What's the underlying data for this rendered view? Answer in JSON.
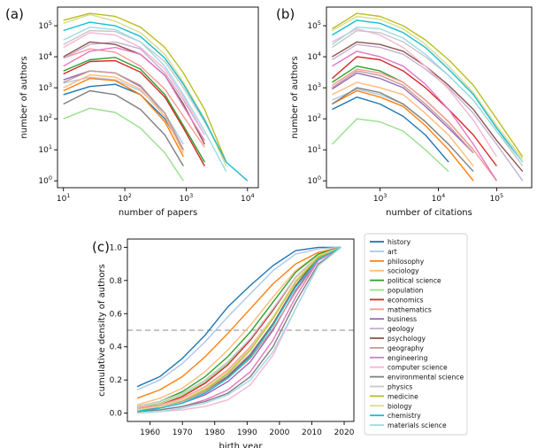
{
  "panel_labels": [
    "(a)",
    "(b)",
    "(c)"
  ],
  "legend": {
    "entries": [
      "history",
      "art",
      "philosophy",
      "sociology",
      "political science",
      "population",
      "economics",
      "mathematics",
      "business",
      "geology",
      "psychology",
      "geography",
      "engineering",
      "computer science",
      "environmental science",
      "physics",
      "medicine",
      "biology",
      "chemistry",
      "materials science"
    ],
    "colors": [
      "#1f77b4",
      "#aec7e8",
      "#ff7f0e",
      "#ffbb78",
      "#2ca02c",
      "#98df8a",
      "#d62728",
      "#ff9896",
      "#9467bd",
      "#c5b0d5",
      "#8c564b",
      "#c49c94",
      "#e377c2",
      "#f7b6d2",
      "#7f7f7f",
      "#c7c7c7",
      "#bcbd22",
      "#dbdb8d",
      "#17becf",
      "#9edae5"
    ]
  },
  "chart_data": [
    {
      "type": "line",
      "panel": "(a)",
      "xlabel": "number of papers",
      "ylabel": "number of authors",
      "xscale": "log",
      "yscale": "log",
      "xlim": [
        8,
        15000
      ],
      "ylim": [
        0.6,
        400000
      ],
      "xticks": [
        10,
        100,
        1000,
        10000
      ],
      "yticks": [
        1,
        10,
        100,
        1000,
        10000,
        100000
      ],
      "x": [
        10,
        27,
        70,
        180,
        450,
        900,
        2000,
        4500,
        10000
      ],
      "series": [
        {
          "name": "history",
          "values": [
            600,
            1100,
            1300,
            600,
            100,
            10,
            null,
            null,
            null
          ]
        },
        {
          "name": "art",
          "values": [
            1400,
            2200,
            1800,
            800,
            150,
            15,
            null,
            null,
            null
          ]
        },
        {
          "name": "philosophy",
          "values": [
            800,
            2000,
            1700,
            600,
            80,
            6,
            null,
            null,
            null
          ]
        },
        {
          "name": "sociology",
          "values": [
            1000,
            2600,
            2200,
            900,
            120,
            8,
            null,
            null,
            null
          ]
        },
        {
          "name": "political science",
          "values": [
            3500,
            8000,
            9500,
            4000,
            600,
            60,
            4,
            null,
            null
          ]
        },
        {
          "name": "population",
          "values": [
            100,
            220,
            160,
            50,
            8,
            1,
            null,
            null,
            null
          ]
        },
        {
          "name": "economics",
          "values": [
            2800,
            7000,
            7500,
            3200,
            500,
            50,
            3,
            null,
            null
          ]
        },
        {
          "name": "mathematics",
          "values": [
            9000,
            18000,
            14000,
            5000,
            900,
            120,
            12,
            null,
            null
          ]
        },
        {
          "name": "business",
          "values": [
            1800,
            3500,
            3000,
            1100,
            150,
            10,
            null,
            null,
            null
          ]
        },
        {
          "name": "geology",
          "values": [
            9000,
            25000,
            30000,
            18000,
            3000,
            400,
            30,
            null,
            null
          ]
        },
        {
          "name": "psychology",
          "values": [
            10000,
            30000,
            25000,
            12000,
            2500,
            300,
            15,
            null,
            null
          ]
        },
        {
          "name": "geography",
          "values": [
            1500,
            3500,
            3000,
            1200,
            150,
            10,
            null,
            null,
            null
          ]
        },
        {
          "name": "engineering",
          "values": [
            5000,
            15000,
            20000,
            12000,
            2500,
            250,
            20,
            null,
            null
          ]
        },
        {
          "name": "computer science",
          "values": [
            20000,
            60000,
            50000,
            20000,
            4000,
            500,
            30,
            null,
            null
          ]
        },
        {
          "name": "environmental science",
          "values": [
            300,
            800,
            600,
            200,
            30,
            3,
            null,
            null,
            null
          ]
        },
        {
          "name": "physics",
          "values": [
            25000,
            70000,
            65000,
            30000,
            7000,
            1000,
            80,
            4,
            null
          ]
        },
        {
          "name": "medicine",
          "values": [
            150000,
            250000,
            200000,
            90000,
            20000,
            3000,
            200,
            4,
            null
          ]
        },
        {
          "name": "biology",
          "values": [
            120000,
            230000,
            140000,
            60000,
            12000,
            1500,
            100,
            3,
            null
          ]
        },
        {
          "name": "chemistry",
          "values": [
            70000,
            130000,
            100000,
            45000,
            9000,
            1300,
            90,
            4,
            1
          ]
        },
        {
          "name": "materials science",
          "values": [
            35000,
            90000,
            75000,
            30000,
            5000,
            600,
            40,
            2,
            null
          ]
        }
      ]
    },
    {
      "type": "line",
      "panel": "(b)",
      "xlabel": "number of citations",
      "ylabel": "number of authors",
      "xscale": "log",
      "yscale": "log",
      "xlim": [
        120,
        400000
      ],
      "ylim": [
        0.6,
        400000
      ],
      "xticks": [
        1000,
        10000,
        100000
      ],
      "yticks": [
        1,
        10,
        100,
        1000,
        10000,
        100000
      ],
      "x": [
        150,
        400,
        1000,
        2500,
        6000,
        15000,
        40000,
        100000,
        280000
      ],
      "series": [
        {
          "name": "history",
          "values": [
            200,
            500,
            300,
            120,
            30,
            4,
            null,
            null,
            null
          ]
        },
        {
          "name": "art",
          "values": [
            400,
            900,
            600,
            300,
            80,
            15,
            null,
            null,
            null
          ]
        },
        {
          "name": "philosophy",
          "values": [
            300,
            800,
            500,
            250,
            60,
            10,
            1,
            null,
            null
          ]
        },
        {
          "name": "sociology",
          "values": [
            600,
            1500,
            1000,
            600,
            150,
            30,
            3,
            null,
            null
          ]
        },
        {
          "name": "political science",
          "values": [
            1500,
            5000,
            3500,
            1500,
            400,
            80,
            10,
            null,
            null
          ]
        },
        {
          "name": "population",
          "values": [
            15,
            100,
            80,
            40,
            10,
            2,
            null,
            null,
            null
          ]
        },
        {
          "name": "economics",
          "values": [
            2000,
            10000,
            8000,
            3500,
            1000,
            200,
            30,
            3,
            null
          ]
        },
        {
          "name": "mathematics",
          "values": [
            1200,
            4000,
            3000,
            1500,
            400,
            80,
            10,
            1,
            null
          ]
        },
        {
          "name": "business",
          "values": [
            900,
            3000,
            2000,
            1000,
            250,
            50,
            8,
            null,
            null
          ]
        },
        {
          "name": "geology",
          "values": [
            8000,
            25000,
            20000,
            12000,
            4000,
            1000,
            150,
            15,
            1
          ]
        },
        {
          "name": "psychology",
          "values": [
            10000,
            30000,
            25000,
            15000,
            5000,
            1200,
            200,
            20,
            2
          ]
        },
        {
          "name": "geography",
          "values": [
            1000,
            3500,
            2500,
            1200,
            300,
            60,
            8,
            null,
            null
          ]
        },
        {
          "name": "engineering",
          "values": [
            5000,
            15000,
            10000,
            5000,
            1300,
            200,
            15,
            1,
            null
          ]
        },
        {
          "name": "computer science",
          "values": [
            30000,
            80000,
            50000,
            20000,
            5000,
            900,
            90,
            6,
            null
          ]
        },
        {
          "name": "environmental science",
          "values": [
            300,
            1000,
            700,
            300,
            80,
            15,
            2,
            null,
            null
          ]
        },
        {
          "name": "physics",
          "values": [
            20000,
            70000,
            60000,
            30000,
            10000,
            2500,
            400,
            40,
            3
          ]
        },
        {
          "name": "medicine",
          "values": [
            80000,
            250000,
            200000,
            100000,
            35000,
            8000,
            1200,
            100,
            6
          ]
        },
        {
          "name": "biology",
          "values": [
            70000,
            200000,
            160000,
            80000,
            25000,
            5000,
            700,
            60,
            5
          ]
        },
        {
          "name": "chemistry",
          "values": [
            50000,
            150000,
            120000,
            60000,
            20000,
            4000,
            600,
            50,
            4
          ]
        },
        {
          "name": "materials science",
          "values": [
            25000,
            90000,
            80000,
            40000,
            12000,
            2500,
            400,
            40,
            4
          ]
        }
      ]
    },
    {
      "type": "line",
      "panel": "(c)",
      "xlabel": "birth year",
      "ylabel": "cumulative density of authors",
      "xlim": [
        1953,
        2023
      ],
      "ylim": [
        -0.05,
        1.05
      ],
      "xticks": [
        1960,
        1970,
        1980,
        1990,
        2000,
        2010,
        2020
      ],
      "yticks": [
        0.0,
        0.2,
        0.4,
        0.6,
        0.8,
        1.0
      ],
      "hline": 0.5,
      "x": [
        1956,
        1963,
        1970,
        1977,
        1984,
        1991,
        1998,
        2005,
        2012,
        2019
      ],
      "series": [
        {
          "name": "history",
          "values": [
            0.16,
            0.22,
            0.33,
            0.47,
            0.64,
            0.77,
            0.89,
            0.98,
            1.0,
            1.0
          ]
        },
        {
          "name": "art",
          "values": [
            0.14,
            0.2,
            0.3,
            0.43,
            0.58,
            0.72,
            0.86,
            0.96,
            0.99,
            1.0
          ]
        },
        {
          "name": "philosophy",
          "values": [
            0.09,
            0.14,
            0.22,
            0.34,
            0.48,
            0.63,
            0.78,
            0.9,
            0.97,
            1.0
          ]
        },
        {
          "name": "sociology",
          "values": [
            0.05,
            0.09,
            0.15,
            0.25,
            0.38,
            0.53,
            0.7,
            0.86,
            0.96,
            1.0
          ]
        },
        {
          "name": "political science",
          "values": [
            0.04,
            0.07,
            0.13,
            0.22,
            0.34,
            0.49,
            0.67,
            0.85,
            0.96,
            1.0
          ]
        },
        {
          "name": "population",
          "values": [
            0.03,
            0.06,
            0.11,
            0.19,
            0.3,
            0.45,
            0.63,
            0.82,
            0.95,
            1.0
          ]
        },
        {
          "name": "economics",
          "values": [
            0.03,
            0.05,
            0.1,
            0.18,
            0.29,
            0.44,
            0.62,
            0.82,
            0.95,
            1.0
          ]
        },
        {
          "name": "mathematics",
          "values": [
            0.03,
            0.05,
            0.09,
            0.16,
            0.26,
            0.4,
            0.58,
            0.79,
            0.94,
            1.0
          ]
        },
        {
          "name": "business",
          "values": [
            0.02,
            0.03,
            0.06,
            0.11,
            0.19,
            0.31,
            0.5,
            0.74,
            0.93,
            1.0
          ]
        },
        {
          "name": "geology",
          "values": [
            0.02,
            0.04,
            0.08,
            0.14,
            0.23,
            0.36,
            0.54,
            0.76,
            0.93,
            1.0
          ]
        },
        {
          "name": "psychology",
          "values": [
            0.02,
            0.04,
            0.07,
            0.13,
            0.22,
            0.35,
            0.54,
            0.77,
            0.94,
            1.0
          ]
        },
        {
          "name": "geography",
          "values": [
            0.02,
            0.04,
            0.07,
            0.13,
            0.21,
            0.33,
            0.51,
            0.73,
            0.92,
            1.0
          ]
        },
        {
          "name": "engineering",
          "values": [
            0.01,
            0.02,
            0.04,
            0.08,
            0.14,
            0.25,
            0.44,
            0.7,
            0.92,
            1.0
          ]
        },
        {
          "name": "computer science",
          "values": [
            0.0,
            0.01,
            0.02,
            0.04,
            0.08,
            0.17,
            0.35,
            0.63,
            0.89,
            1.0
          ]
        },
        {
          "name": "environmental science",
          "values": [
            0.01,
            0.02,
            0.04,
            0.07,
            0.12,
            0.22,
            0.4,
            0.67,
            0.9,
            1.0
          ]
        },
        {
          "name": "physics",
          "values": [
            0.04,
            0.07,
            0.12,
            0.2,
            0.31,
            0.45,
            0.63,
            0.82,
            0.95,
            1.0
          ]
        },
        {
          "name": "medicine",
          "values": [
            0.02,
            0.04,
            0.08,
            0.14,
            0.24,
            0.38,
            0.57,
            0.79,
            0.94,
            1.0
          ]
        },
        {
          "name": "biology",
          "values": [
            0.02,
            0.04,
            0.08,
            0.15,
            0.25,
            0.39,
            0.58,
            0.8,
            0.95,
            1.0
          ]
        },
        {
          "name": "chemistry",
          "values": [
            0.01,
            0.03,
            0.06,
            0.12,
            0.21,
            0.34,
            0.53,
            0.76,
            0.93,
            1.0
          ]
        },
        {
          "name": "materials science",
          "values": [
            0.0,
            0.01,
            0.03,
            0.06,
            0.11,
            0.2,
            0.37,
            0.63,
            0.89,
            1.0
          ]
        }
      ]
    }
  ]
}
